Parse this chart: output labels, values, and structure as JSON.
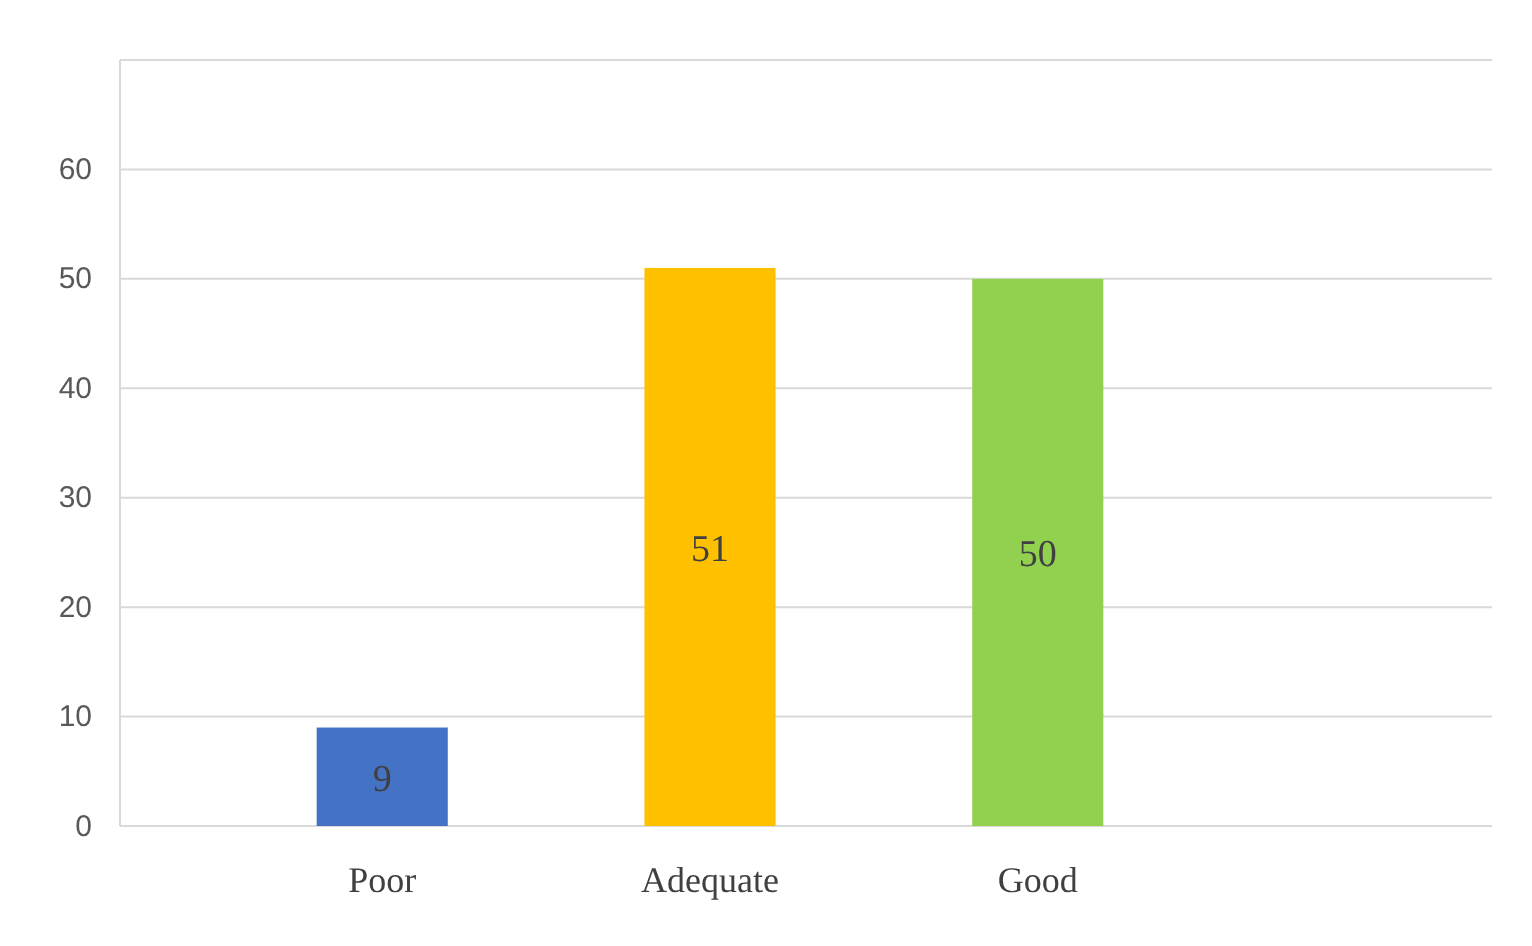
{
  "chart_data": {
    "type": "bar",
    "categories": [
      "Poor",
      "Adequate",
      "Good"
    ],
    "values": [
      9,
      51,
      50
    ],
    "colors": [
      "#4472c4",
      "#ffc000",
      "#92d050"
    ],
    "ylim": [
      0,
      70
    ],
    "yticks": [
      0,
      10,
      20,
      30,
      40,
      50,
      60,
      {
        "value": 70,
        "label": null
      }
    ],
    "grid": "y",
    "data_labels": true
  }
}
